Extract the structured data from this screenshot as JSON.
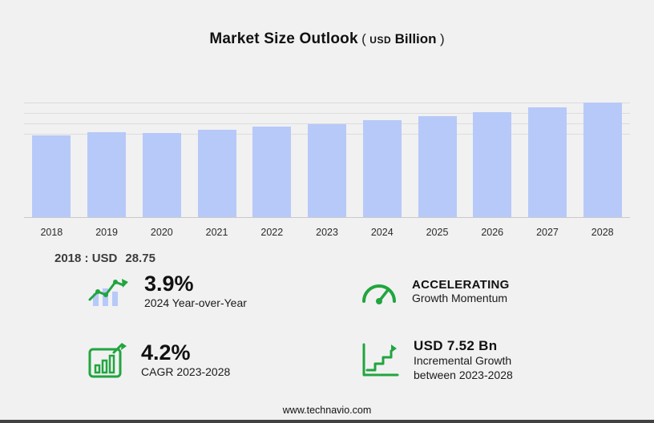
{
  "title": {
    "main": "Market Size Outlook",
    "paren_open": "(",
    "unit_small": "USD",
    "unit": "Billion",
    "paren_close": ")"
  },
  "chart_data": {
    "type": "bar",
    "title": "Market Size Outlook",
    "unit": "USD Billion",
    "categories": [
      "2018",
      "2019",
      "2020",
      "2021",
      "2022",
      "2023",
      "2024",
      "2025",
      "2026",
      "2027",
      "2028"
    ],
    "values": [
      28.75,
      29.9,
      29.7,
      30.9,
      31.9,
      32.93,
      34.21,
      35.6,
      37.1,
      38.7,
      40.45
    ],
    "xlabel": "",
    "ylabel": "",
    "ylim": [
      0,
      41
    ],
    "grid": "horizontal, upper region only",
    "legend": "none",
    "bar_color": "#b7c9f8"
  },
  "annotation": {
    "label": "2018 : USD",
    "value": "28.75"
  },
  "stats": [
    {
      "icon": "yoy-bar-chart-icon",
      "value": "3.9%",
      "caption": "2024 Year-over-Year"
    },
    {
      "icon": "speedometer-icon",
      "heading": "ACCELERATING",
      "caption": "Growth Momentum"
    },
    {
      "icon": "cagr-chart-icon",
      "value": "4.2%",
      "caption": "CAGR 2023-2028"
    },
    {
      "icon": "incremental-growth-icon",
      "heading": "USD 7.52 Bn",
      "caption_line1": "Incremental Growth",
      "caption_line2": "between 2023-2028"
    }
  ],
  "footer": {
    "url": "www.technavio.com"
  },
  "colors": {
    "background": "#f1f1f2",
    "bar": "#b7c9f8",
    "accent_green": "#21a53e",
    "gridline": "#dcdcdc",
    "footer_bar": "#414141",
    "text": "#111111"
  }
}
